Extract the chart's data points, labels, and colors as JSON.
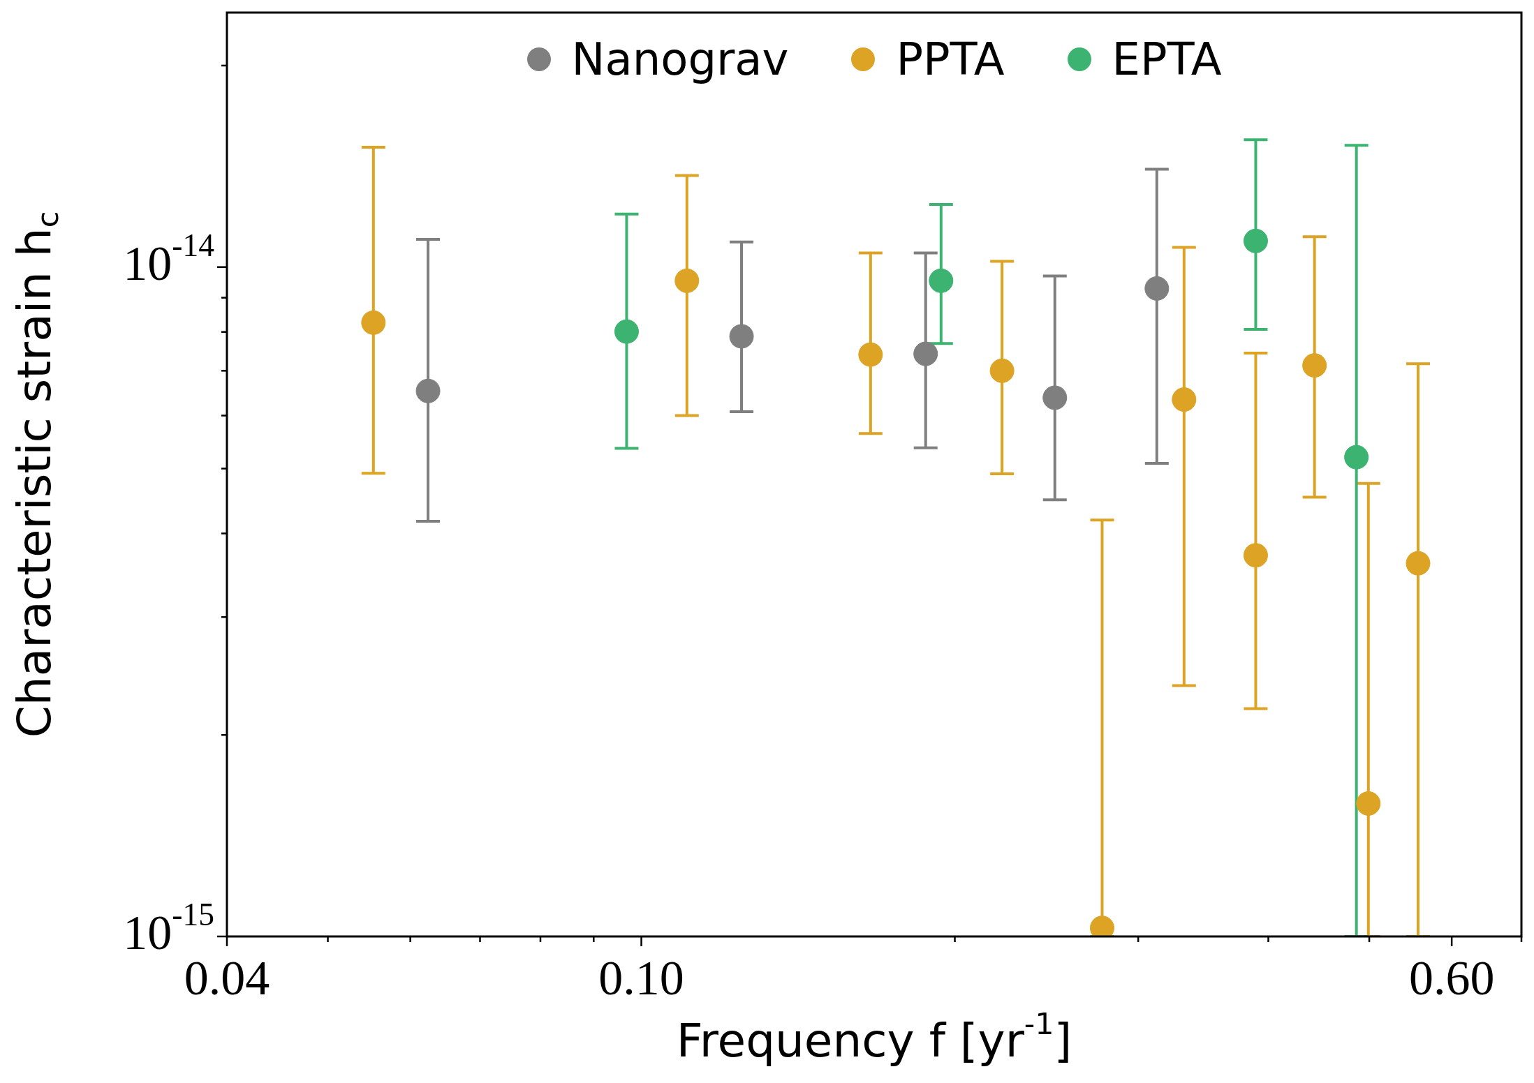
{
  "chart_data": {
    "type": "scatter",
    "xlabel": "Frequency f [yr$^{-1}$]",
    "ylabel": "Characteristic strain h$_{c}$",
    "log": "xy",
    "grid": false,
    "legend": "top",
    "marker": "circle",
    "xlim": [
      0.04,
      0.7
    ],
    "ylim": [
      1e-15,
      2.4e-14
    ],
    "xticks": [
      {
        "value": 0.04,
        "label": "0.04"
      },
      {
        "value": 0.05,
        "label": null
      },
      {
        "value": 0.06,
        "label": null
      },
      {
        "value": 0.07,
        "label": null
      },
      {
        "value": 0.08,
        "label": null
      },
      {
        "value": 0.09,
        "label": null
      },
      {
        "value": 0.1,
        "label": "0.10"
      },
      {
        "value": 0.2,
        "label": null
      },
      {
        "value": 0.3,
        "label": null
      },
      {
        "value": 0.4,
        "label": null
      },
      {
        "value": 0.5,
        "label": null
      },
      {
        "value": 0.6,
        "label": "0.60"
      },
      {
        "value": 0.7,
        "label": null
      }
    ],
    "yticks": [
      {
        "value": 1e-15,
        "label": "10$^{-15}$"
      },
      {
        "value": 2e-15,
        "label": null
      },
      {
        "value": 3e-15,
        "label": null
      },
      {
        "value": 4e-15,
        "label": null
      },
      {
        "value": 5e-15,
        "label": null
      },
      {
        "value": 6e-15,
        "label": null
      },
      {
        "value": 7e-15,
        "label": null
      },
      {
        "value": 8e-15,
        "label": null
      },
      {
        "value": 9e-15,
        "label": null
      },
      {
        "value": 1e-14,
        "label": "10$^{-14}$"
      },
      {
        "value": 2e-14,
        "label": null
      }
    ],
    "series": [
      {
        "name": "Nanograv",
        "color": "#7f7f7f",
        "x": [
          0.0624,
          0.1248,
          0.1875,
          0.2495,
          0.3126
        ],
        "values": [
          6.53e-15,
          7.88e-15,
          7.42e-15,
          6.38e-15,
          9.29e-15
        ],
        "errors": [
          [
            4.17e-15,
            1.1e-14
          ],
          [
            6.08e-15,
            1.09e-14
          ],
          [
            5.37e-15,
            1.05e-14
          ],
          [
            4.49e-15,
            9.7e-15
          ],
          [
            5.09e-15,
            1.4e-14
          ]
        ]
      },
      {
        "name": "PPTA",
        "color": "#dca325",
        "x": [
          0.0553,
          0.1106,
          0.166,
          0.222,
          0.277,
          0.332,
          0.389,
          0.443,
          0.499,
          0.557
        ],
        "values": [
          8.26e-15,
          9.54e-15,
          7.4e-15,
          7e-15,
          1.03e-15,
          6.34e-15,
          3.71e-15,
          7.13e-15,
          1.58e-15,
          3.61e-15
        ],
        "errors": [
          [
            4.92e-15,
            1.51e-14
          ],
          [
            6e-15,
            1.37e-14
          ],
          [
            5.64e-15,
            1.05e-14
          ],
          [
            4.91e-15,
            1.02e-14
          ],
          [
            1e-15,
            4.19e-15
          ],
          [
            2.37e-15,
            1.07e-14
          ],
          [
            2.19e-15,
            7.44e-15
          ],
          [
            4.53e-15,
            1.11e-14
          ],
          [
            1e-15,
            4.75e-15
          ],
          [
            1e-15,
            7.17e-15
          ]
        ]
      },
      {
        "name": "EPTA",
        "color": "#3cb371",
        "x": [
          0.0968,
          0.194,
          0.389,
          0.486
        ],
        "values": [
          8.01e-15,
          9.54e-15,
          1.094e-14,
          5.2e-15
        ],
        "errors": [
          [
            5.36e-15,
            1.2e-14
          ],
          [
            7.69e-15,
            1.24e-14
          ],
          [
            8.07e-15,
            1.55e-14
          ],
          [
            1e-15,
            1.52e-14
          ]
        ]
      }
    ]
  }
}
